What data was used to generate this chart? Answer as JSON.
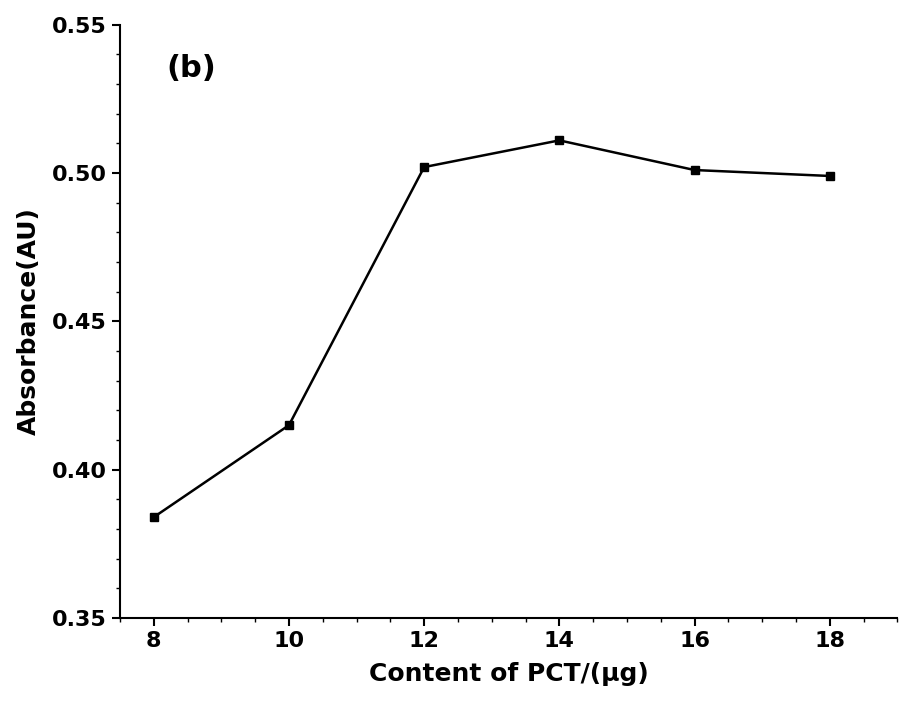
{
  "x": [
    8,
    10,
    12,
    14,
    16,
    18
  ],
  "y": [
    0.384,
    0.415,
    0.502,
    0.511,
    0.501,
    0.499
  ],
  "xlabel": "Content of PCT/(μg)",
  "ylabel": "Absorbance(AU)",
  "label_text": "(b)",
  "xlim": [
    7.5,
    19
  ],
  "ylim": [
    0.35,
    0.55
  ],
  "xticks": [
    8,
    10,
    12,
    14,
    16,
    18
  ],
  "yticks_major": [
    0.35,
    0.4,
    0.45,
    0.5,
    0.55
  ],
  "line_color": "#000000",
  "marker": "s",
  "marker_size": 6,
  "line_width": 1.8,
  "background_color": "#ffffff",
  "label_fontsize_text": 22,
  "label_fontsize": 18,
  "tick_fontsize": 16
}
